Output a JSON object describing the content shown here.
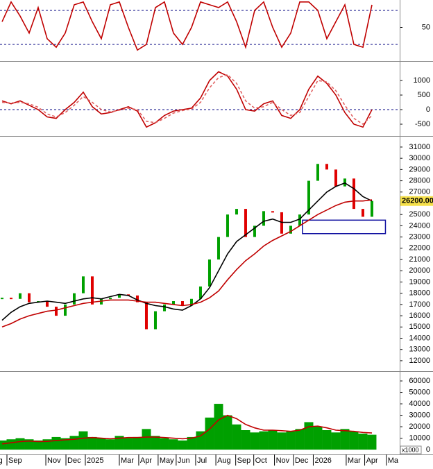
{
  "chart_data": [
    {
      "type": "line",
      "x": [
        0,
        1,
        2,
        3,
        4,
        5,
        6,
        7,
        8,
        9,
        10,
        11,
        12,
        13,
        14,
        15,
        16,
        17,
        18,
        19,
        20,
        21,
        22,
        23,
        24,
        25,
        26,
        27,
        28,
        29,
        30,
        31,
        32,
        33,
        34,
        35,
        36,
        37,
        38,
        39,
        40,
        41
      ],
      "xlim": [
        -0.23,
        44.08
      ],
      "ylim": [
        -9.4,
        98.4
      ],
      "yticks": [
        50
      ],
      "hlines": [
        80,
        20
      ],
      "series": [
        {
          "color": "#c00000",
          "values": [
            60,
            95,
            70,
            40,
            85,
            30,
            15,
            40,
            90,
            95,
            60,
            30,
            90,
            95,
            50,
            10,
            20,
            85,
            95,
            40,
            20,
            50,
            95,
            90,
            85,
            95,
            60,
            15,
            80,
            95,
            50,
            15,
            40,
            95,
            95,
            80,
            30,
            60,
            90,
            20,
            15,
            90
          ]
        }
      ]
    },
    {
      "type": "line",
      "x": [
        0,
        1,
        2,
        3,
        4,
        5,
        6,
        7,
        8,
        9,
        10,
        11,
        12,
        13,
        14,
        15,
        16,
        17,
        18,
        19,
        20,
        21,
        22,
        23,
        24,
        25,
        26,
        27,
        28,
        29,
        30,
        31,
        32,
        33,
        34,
        35,
        36,
        37,
        38,
        39,
        40,
        41
      ],
      "xlim": [
        -0.23,
        44.08
      ],
      "ylim": [
        -905,
        1620
      ],
      "yticks": [
        -500,
        0,
        500,
        1000
      ],
      "hlines": [
        0
      ],
      "series": [
        {
          "color": "#c00000",
          "values": [
            300,
            200,
            300,
            150,
            0,
            -250,
            -300,
            0,
            250,
            600,
            100,
            -150,
            -100,
            0,
            100,
            -50,
            -600,
            -450,
            -200,
            -50,
            0,
            50,
            400,
            1000,
            1300,
            1150,
            700,
            0,
            -50,
            200,
            300,
            -200,
            -300,
            0,
            700,
            1150,
            900,
            500,
            -100,
            -500,
            -600,
            0
          ]
        },
        {
          "color": "#e06060",
          "style": "dashed",
          "values": [
            250,
            230,
            250,
            200,
            80,
            -150,
            -250,
            -100,
            150,
            450,
            250,
            0,
            -80,
            -20,
            50,
            0,
            -400,
            -450,
            -300,
            -120,
            -30,
            20,
            250,
            750,
            1100,
            1200,
            900,
            300,
            50,
            100,
            250,
            0,
            -200,
            -100,
            450,
            1000,
            950,
            650,
            150,
            -300,
            -500,
            -200
          ]
        }
      ]
    },
    {
      "type": "price",
      "x": [
        0,
        1,
        2,
        3,
        4,
        5,
        6,
        7,
        8,
        9,
        10,
        11,
        12,
        13,
        14,
        15,
        16,
        17,
        18,
        19,
        20,
        21,
        22,
        23,
        24,
        25,
        26,
        27,
        28,
        29,
        30,
        31,
        32,
        33,
        34,
        35,
        36,
        37,
        38,
        39,
        40,
        41
      ],
      "xlim": [
        -0.23,
        44.08
      ],
      "ylim": [
        11070,
        31860
      ],
      "yticks": [
        12000,
        13000,
        14000,
        15000,
        16000,
        17000,
        18000,
        19000,
        20000,
        21000,
        22000,
        23000,
        24000,
        25000,
        26000,
        27000,
        28000,
        29000,
        30000,
        31000
      ],
      "close": [
        17600,
        17500,
        18000,
        17200,
        17300,
        16800,
        16000,
        17000,
        18000,
        19500,
        17000,
        17500,
        17600,
        17900,
        17800,
        17200,
        14800,
        16400,
        17000,
        17300,
        16900,
        17500,
        18600,
        21000,
        23000,
        25000,
        25500,
        23000,
        24000,
        25300,
        25200,
        23300,
        24000,
        25000,
        28000,
        29500,
        29000,
        27500,
        28200,
        25500,
        24800,
        26200
      ],
      "color_up": "#00a000",
      "color_down": "#e00000",
      "series": [
        {
          "color": "#000000",
          "values": [
            15600,
            16300,
            16800,
            17100,
            17200,
            17300,
            17200,
            17100,
            17300,
            17500,
            17600,
            17500,
            17700,
            17900,
            17800,
            17400,
            17100,
            16900,
            16800,
            16600,
            16500,
            16900,
            17500,
            18500,
            20000,
            21500,
            22600,
            23200,
            23800,
            24400,
            24600,
            24300,
            24300,
            24600,
            25400,
            26200,
            27000,
            27500,
            27800,
            27300,
            26600,
            26200
          ]
        },
        {
          "color": "#c00000",
          "values": [
            15000,
            15300,
            15700,
            16000,
            16200,
            16400,
            16500,
            16700,
            16900,
            17100,
            17200,
            17300,
            17400,
            17400,
            17400,
            17300,
            17200,
            17200,
            17100,
            17000,
            16900,
            17000,
            17200,
            17600,
            18200,
            19200,
            20100,
            20900,
            21500,
            22200,
            22700,
            23100,
            23500,
            24000,
            24500,
            25000,
            25400,
            25800,
            26100,
            26200,
            26200,
            26300
          ]
        }
      ],
      "last_price": {
        "value": 26200,
        "label": "26200.00"
      },
      "zone": {
        "x": [
          33.3,
          42.5
        ],
        "y": [
          23300,
          24500
        ],
        "color": "#1010a0"
      }
    },
    {
      "type": "bar",
      "x": [
        0,
        1,
        2,
        3,
        4,
        5,
        6,
        7,
        8,
        9,
        10,
        11,
        12,
        13,
        14,
        15,
        16,
        17,
        18,
        19,
        20,
        21,
        22,
        23,
        24,
        25,
        26,
        27,
        28,
        29,
        30,
        31,
        32,
        33,
        34,
        35,
        36,
        37,
        38,
        39,
        40,
        41
      ],
      "xlim": [
        -0.23,
        44.08
      ],
      "ylim": [
        -4200,
        67300
      ],
      "yticks": [
        0,
        10000,
        20000,
        30000,
        40000,
        50000,
        60000
      ],
      "values": [
        8000,
        9000,
        10000,
        9000,
        8000,
        9000,
        11000,
        10000,
        12000,
        16000,
        11000,
        10000,
        9000,
        12000,
        10000,
        11000,
        18000,
        12000,
        10000,
        9000,
        8000,
        11000,
        16000,
        28000,
        40000,
        30000,
        22000,
        17000,
        15000,
        16000,
        17000,
        15000,
        16000,
        18000,
        24000,
        20000,
        17000,
        15000,
        18000,
        16000,
        14000,
        13000
      ],
      "color": "#00a000",
      "series": [
        {
          "color": "#c00000",
          "values": [
            5000,
            6000,
            7000,
            7500,
            7000,
            7200,
            8000,
            8500,
            9000,
            10000,
            10500,
            10000,
            9500,
            10000,
            10500,
            10500,
            11000,
            11000,
            10500,
            10000,
            9500,
            10000,
            12000,
            18000,
            26000,
            30000,
            27000,
            22000,
            19000,
            17000,
            17000,
            16500,
            16000,
            17000,
            20000,
            20500,
            19000,
            17000,
            16500,
            16000,
            15000,
            14500
          ]
        }
      ],
      "unit_label": "x1000",
      "xticks": [
        {
          "value": -1.6,
          "label": "Aug"
        },
        {
          "value": 0.54,
          "label": "Sep"
        },
        {
          "value": 4.85,
          "label": "Nov"
        },
        {
          "value": 7.08,
          "label": "Dec"
        },
        {
          "value": 9.23,
          "label": "2025"
        },
        {
          "value": 13,
          "label": "Mar"
        },
        {
          "value": 15.15,
          "label": "Apr"
        },
        {
          "value": 17.3,
          "label": "May"
        },
        {
          "value": 19.3,
          "label": "Jun"
        },
        {
          "value": 21.46,
          "label": "Jul"
        },
        {
          "value": 23.7,
          "label": "Aug"
        },
        {
          "value": 25.9,
          "label": "Sep"
        },
        {
          "value": 27.9,
          "label": "Oct"
        },
        {
          "value": 30.2,
          "label": "Nov"
        },
        {
          "value": 32.3,
          "label": "Dec"
        },
        {
          "value": 34.5,
          "label": "2026"
        },
        {
          "value": 38.15,
          "label": "Mar"
        },
        {
          "value": 40.2,
          "label": "Apr"
        },
        {
          "value": 42.6,
          "label": "Ma"
        }
      ]
    }
  ]
}
